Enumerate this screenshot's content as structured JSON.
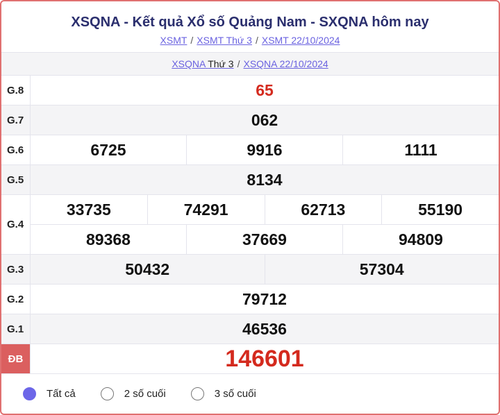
{
  "header": {
    "title": "XSQNA - Kết quả Xổ số Quảng Nam - SXQNA hôm nay",
    "links": [
      "XSMT",
      "XSMT Thứ 3",
      "XSMT 22/10/2024"
    ],
    "sub_link1": "XSQNA",
    "sub_text1": "Thứ 3",
    "sub_link2": "XSQNA 22/10/2024",
    "separator": "/"
  },
  "prizes": [
    {
      "label": "G.8",
      "rows": [
        [
          "65"
        ]
      ]
    },
    {
      "label": "G.7",
      "rows": [
        [
          "062"
        ]
      ]
    },
    {
      "label": "G.6",
      "rows": [
        [
          "6725",
          "9916",
          "1111"
        ]
      ]
    },
    {
      "label": "G.5",
      "rows": [
        [
          "8134"
        ]
      ]
    },
    {
      "label": "G.4",
      "rows": [
        [
          "33735",
          "74291",
          "62713",
          "55190"
        ],
        [
          "89368",
          "37669",
          "94809"
        ]
      ]
    },
    {
      "label": "G.3",
      "rows": [
        [
          "50432",
          "57304"
        ]
      ]
    },
    {
      "label": "G.2",
      "rows": [
        [
          "79712"
        ]
      ]
    },
    {
      "label": "G.1",
      "rows": [
        [
          "46536"
        ]
      ]
    },
    {
      "label": "ĐB",
      "rows": [
        [
          "146601"
        ]
      ]
    }
  ],
  "filters": [
    {
      "label": "Tất cả",
      "selected": true
    },
    {
      "label": "2 số cuối",
      "selected": false
    },
    {
      "label": "3 số cuối",
      "selected": false
    }
  ],
  "colors": {
    "accent": "#6c66e8",
    "special": "#d42a1e",
    "border": "#e07070"
  }
}
